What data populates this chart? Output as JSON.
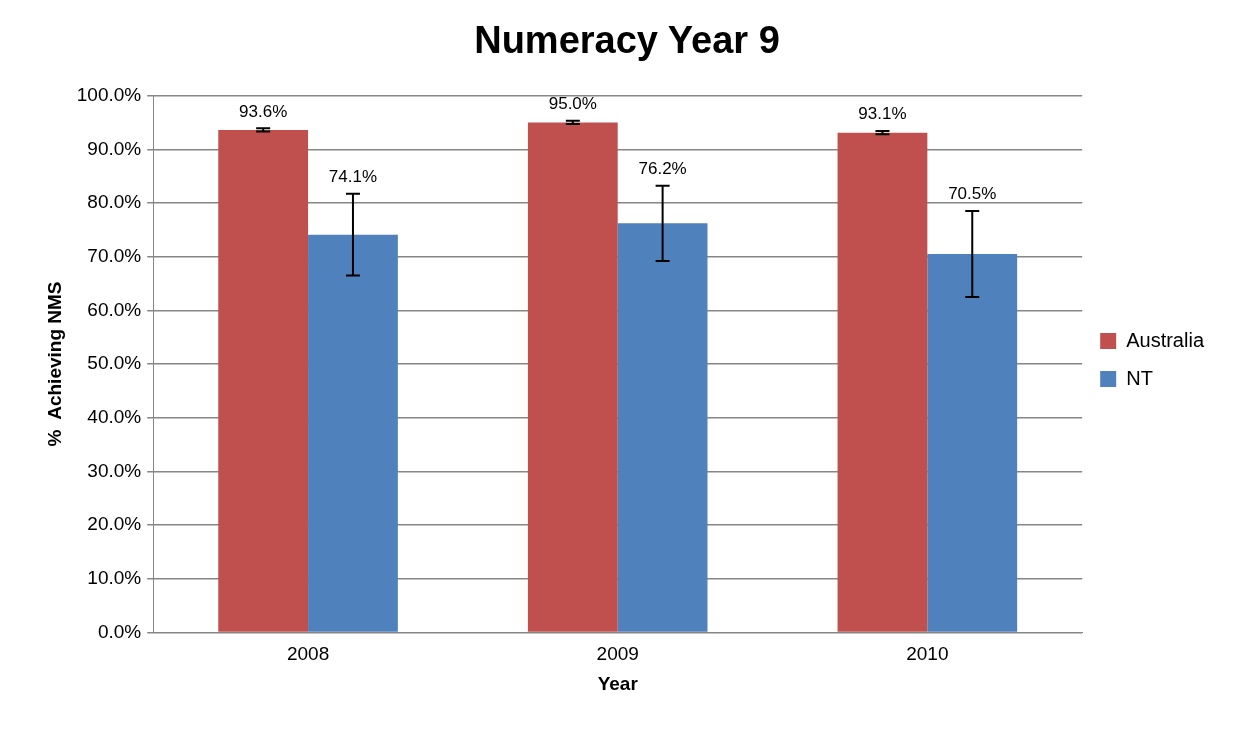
{
  "chart_data": {
    "type": "bar",
    "title": "Numeracy Year 9",
    "xlabel": "Year",
    "ylabel": "%  Achieving NMS",
    "categories": [
      "2008",
      "2009",
      "2010"
    ],
    "series": [
      {
        "name": "Australia",
        "color": "#c0504d",
        "values": [
          93.6,
          95.0,
          93.1
        ],
        "value_labels": [
          "93.6%",
          "95.0%",
          "93.1%"
        ],
        "errors": [
          0.3,
          0.3,
          0.3
        ]
      },
      {
        "name": "NT",
        "color": "#4f81bd",
        "values": [
          74.1,
          76.2,
          70.5
        ],
        "value_labels": [
          "74.1%",
          "76.2%",
          "70.5%"
        ],
        "errors": [
          7.6,
          7.0,
          8.0
        ]
      }
    ],
    "ylim": [
      0,
      100
    ],
    "yticks": [
      {
        "value": 0,
        "label": "0.0%"
      },
      {
        "value": 10,
        "label": "10.0%"
      },
      {
        "value": 20,
        "label": "20.0%"
      },
      {
        "value": 30,
        "label": "30.0%"
      },
      {
        "value": 40,
        "label": "40.0%"
      },
      {
        "value": 50,
        "label": "50.0%"
      },
      {
        "value": 60,
        "label": "60.0%"
      },
      {
        "value": 70,
        "label": "70.0%"
      },
      {
        "value": 80,
        "label": "80.0%"
      },
      {
        "value": 90,
        "label": "90.0%"
      },
      {
        "value": 100,
        "label": "100.0%"
      }
    ],
    "grid": "y",
    "legend": "right"
  }
}
